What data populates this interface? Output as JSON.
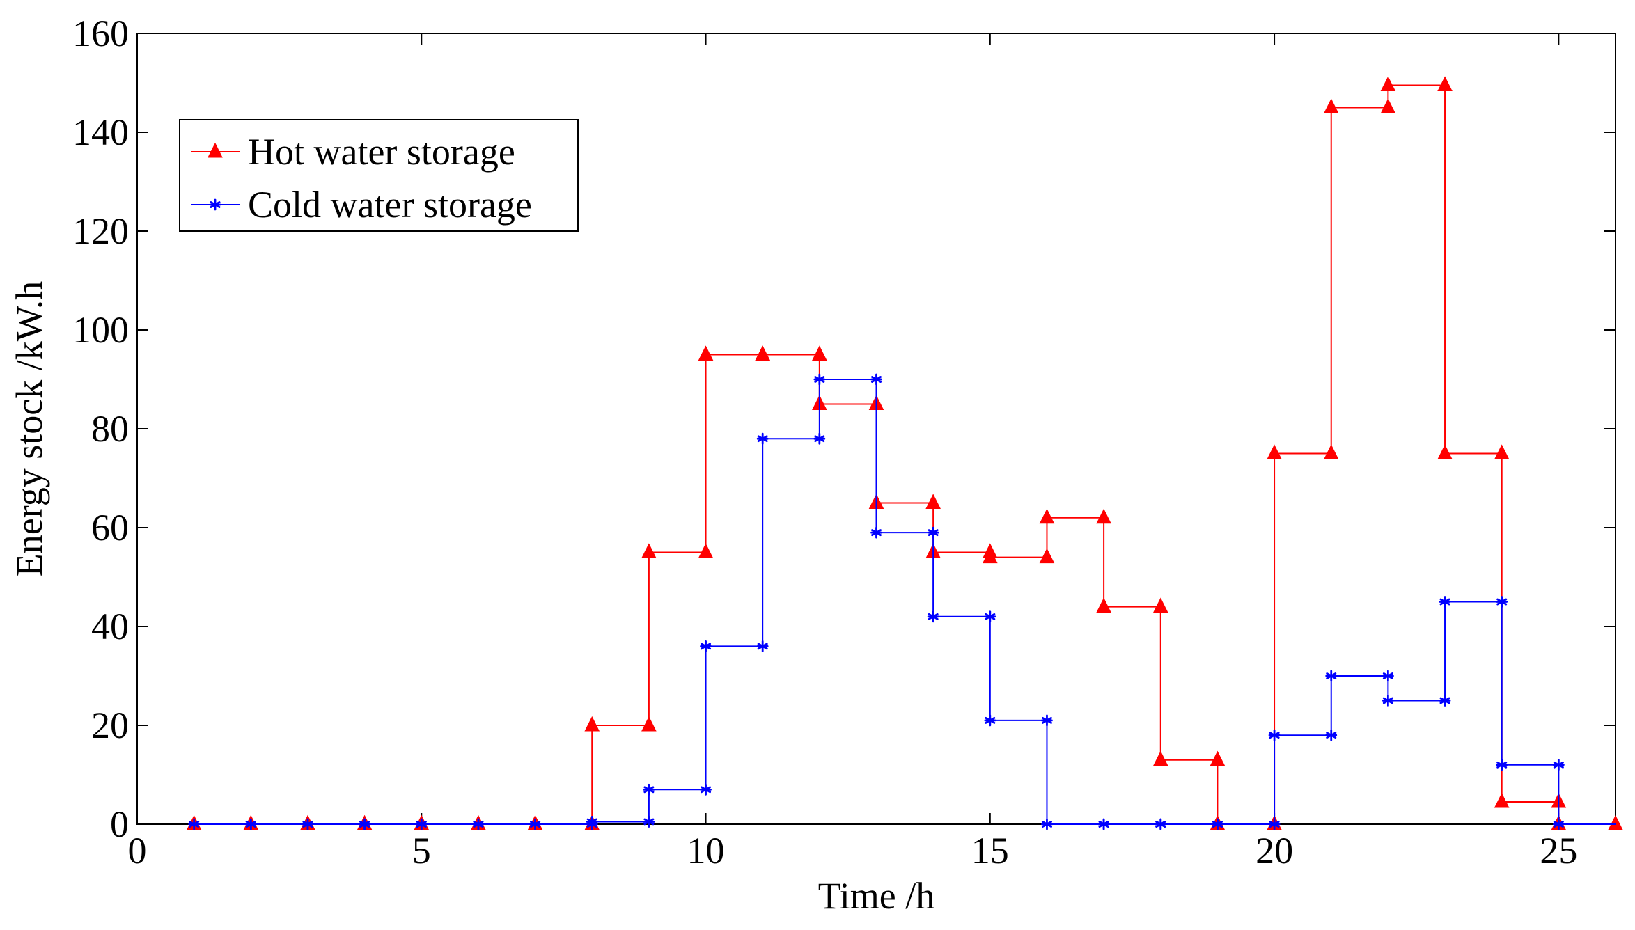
{
  "chart_data": {
    "type": "line",
    "step": "post",
    "title": "",
    "xlabel": "Time /h",
    "ylabel": "Energy stock /kW.h",
    "xlim": [
      0,
      26
    ],
    "ylim": [
      0,
      160
    ],
    "xticks": [
      0,
      5,
      10,
      15,
      20,
      25
    ],
    "yticks": [
      0,
      20,
      40,
      60,
      80,
      100,
      120,
      140,
      160
    ],
    "grid": false,
    "legend_position": "top-left",
    "x": [
      1,
      2,
      3,
      4,
      5,
      6,
      7,
      8,
      9,
      10,
      11,
      12,
      13,
      14,
      15,
      16,
      17,
      18,
      19,
      20,
      21,
      22,
      23,
      24,
      25
    ],
    "series": [
      {
        "name": "Hot water storage",
        "color": "#ff0000",
        "marker": "triangle",
        "values": [
          0,
          0,
          0,
          0,
          0,
          0,
          0,
          20,
          55,
          95,
          95,
          85,
          65,
          55,
          54,
          62,
          44,
          13,
          0,
          75,
          145,
          149.5,
          75,
          4.5,
          0
        ]
      },
      {
        "name": "Cold water storage",
        "color": "#0000ff",
        "marker": "star",
        "values": [
          0,
          0,
          0,
          0,
          0,
          0,
          0,
          0.5,
          7,
          36,
          78,
          90,
          59,
          42,
          21,
          0,
          0,
          0,
          0,
          18,
          30,
          25,
          45,
          12,
          0
        ]
      }
    ]
  }
}
